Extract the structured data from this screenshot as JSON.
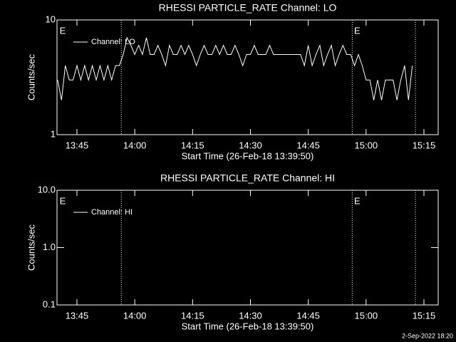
{
  "chart_data": [
    {
      "type": "line",
      "title": "RHESSI PARTICLE_RATE Channel: LO",
      "xlabel": "Start Time (26-Feb-18 13:39:50)",
      "ylabel": "Counts/sec",
      "log_y": true,
      "legend": "upper left",
      "color": "#ffffff",
      "xlim": [
        819.83,
        918.7
      ],
      "ylim": [
        1,
        10
      ],
      "xticks": [
        {
          "value": 825,
          "label": "13:45"
        },
        {
          "value": 840,
          "label": "14:00"
        },
        {
          "value": 855,
          "label": "14:15"
        },
        {
          "value": 870,
          "label": "14:30"
        },
        {
          "value": 885,
          "label": "14:45"
        },
        {
          "value": 900,
          "label": "15:00"
        },
        {
          "value": 915,
          "label": "15:15"
        }
      ],
      "yticks": [
        1,
        10
      ],
      "vlines": [
        836.5,
        896.4,
        912.8
      ],
      "annotations": [
        {
          "text": "E",
          "x": 820.5
        },
        {
          "text": "E",
          "x": 896.9
        }
      ],
      "x": [
        820,
        821,
        822,
        823,
        824,
        825,
        826,
        827,
        828,
        829,
        830,
        831,
        832,
        833,
        834,
        835,
        836,
        837,
        838,
        839,
        840,
        841,
        842,
        843,
        844,
        845,
        846,
        847,
        848,
        849,
        850,
        851,
        852,
        853,
        854,
        855,
        856,
        857,
        858,
        859,
        860,
        861,
        862,
        863,
        864,
        865,
        866,
        867,
        868,
        869,
        870,
        871,
        872,
        873,
        874,
        875,
        876,
        877,
        878,
        879,
        880,
        881,
        882,
        883,
        884,
        885,
        886,
        887,
        888,
        889,
        890,
        891,
        892,
        893,
        894,
        895,
        896,
        897,
        898,
        899,
        900,
        901,
        902,
        903,
        904,
        905,
        906,
        907,
        908,
        909,
        910,
        911,
        912
      ],
      "series": [
        {
          "name": "Channel: LO",
          "color": "#ffffff",
          "values": [
            3,
            2,
            4,
            3,
            3,
            4,
            3,
            4,
            3,
            4,
            3,
            4,
            3,
            4,
            3,
            4,
            4,
            5,
            7,
            6,
            5,
            6,
            5,
            7,
            5,
            5,
            6,
            5,
            4,
            6,
            5,
            5,
            6,
            5,
            6,
            5,
            4,
            5,
            6,
            5,
            5,
            6,
            5,
            6,
            5,
            5,
            6,
            5,
            4,
            5,
            5,
            6,
            5,
            5,
            5,
            6,
            5,
            5,
            5,
            5,
            5,
            5,
            5,
            5,
            4,
            6,
            4,
            5,
            6,
            4,
            5,
            6,
            4,
            5,
            6,
            5,
            5,
            4,
            5,
            4,
            3,
            3,
            2,
            3,
            2,
            3,
            3,
            3,
            2,
            3,
            4,
            2,
            4
          ]
        }
      ]
    },
    {
      "type": "line",
      "title": "RHESSI PARTICLE_RATE Channel: HI",
      "xlabel": "Start Time (26-Feb-18 13:39:50)",
      "ylabel": "Counts/sec",
      "log_y": true,
      "legend": "upper left",
      "color": "#ffffff",
      "xlim": [
        819.83,
        918.7
      ],
      "ylim": [
        0.1,
        10
      ],
      "xticks": [
        {
          "value": 825,
          "label": "13:45"
        },
        {
          "value": 840,
          "label": "14:00"
        },
        {
          "value": 855,
          "label": "14:15"
        },
        {
          "value": 870,
          "label": "14:30"
        },
        {
          "value": 885,
          "label": "14:45"
        },
        {
          "value": 900,
          "label": "15:00"
        },
        {
          "value": 915,
          "label": "15:15"
        }
      ],
      "yticks": [
        0.1,
        {
          "value": 1,
          "label": "1.0"
        },
        {
          "value": 10,
          "label": "10.0"
        }
      ],
      "vlines": [
        836.5,
        896.4,
        912.8
      ],
      "annotations": [
        {
          "text": "E",
          "x": 820.5
        },
        {
          "text": "E",
          "x": 896.9
        }
      ],
      "x": [],
      "series": [
        {
          "name": "Channel: HI",
          "color": "#ffffff",
          "values": []
        }
      ]
    }
  ],
  "footer": "2-Sep-2022 18:20"
}
